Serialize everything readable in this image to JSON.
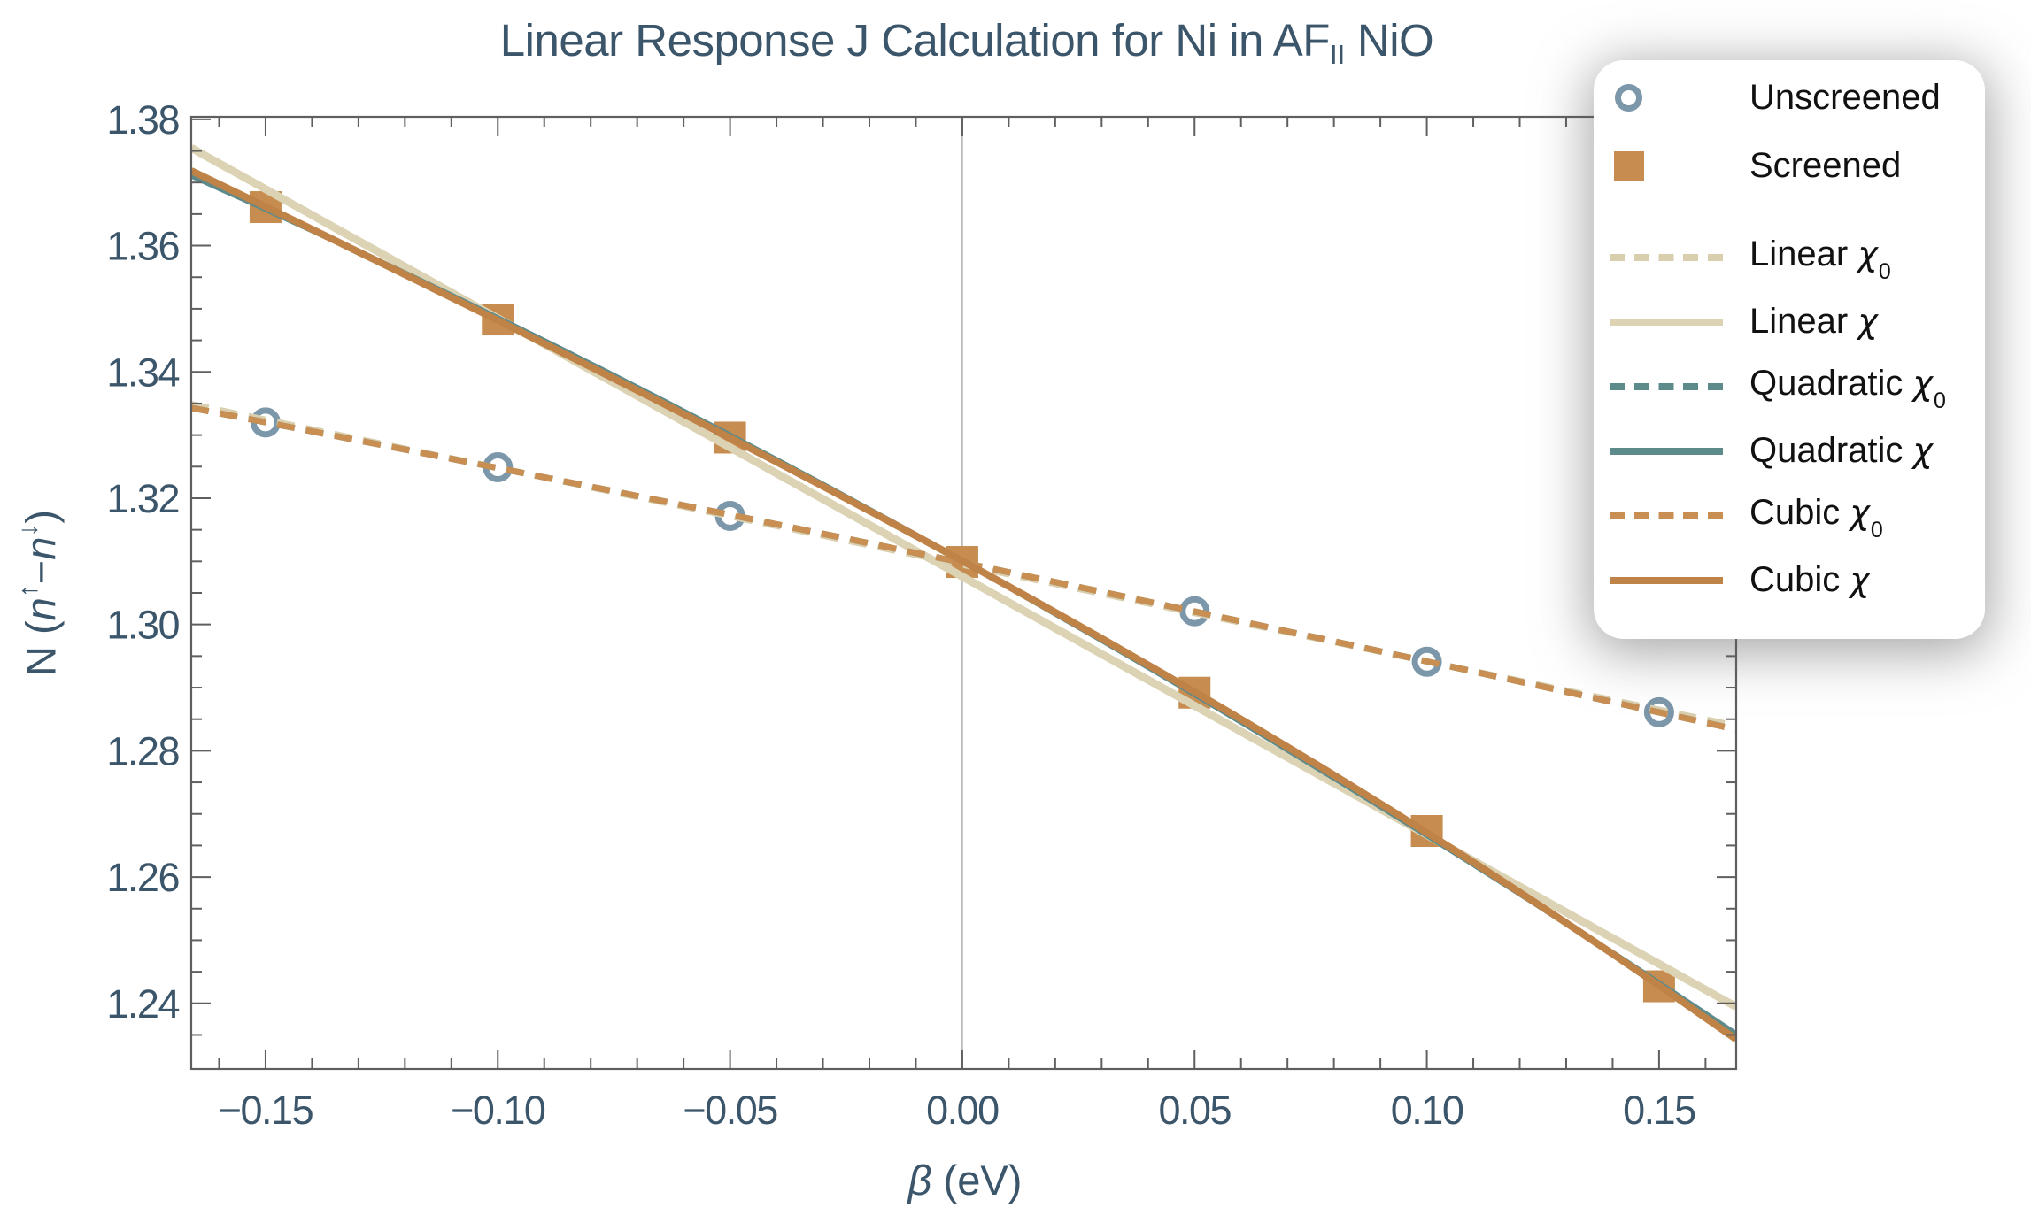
{
  "title": {
    "prefix": "Linear Response J Calculation for Ni in AF",
    "subscript": "II",
    "suffix": " NiO"
  },
  "x_axis": {
    "symbol": "β",
    "unit": " (eV)",
    "min": -0.166,
    "max": 0.1666,
    "tick_values": [
      -0.15,
      -0.1,
      -0.05,
      0.0,
      0.05,
      0.1,
      0.15
    ],
    "tick_labels": [
      "−0.15",
      "−0.10",
      "−0.05",
      "0.00",
      "0.05",
      "0.10",
      "0.15"
    ],
    "minor_step": 0.01,
    "gridline_at": 0
  },
  "y_axis": {
    "label_prefix": "N (",
    "label_n1": "n",
    "label_sup1": "↑",
    "label_minus": "−",
    "label_n2": "n",
    "label_sup2": "↓",
    "label_suffix": ")",
    "min": 1.2296,
    "max": 1.3804,
    "tick_values": [
      1.24,
      1.26,
      1.28,
      1.3,
      1.32,
      1.34,
      1.36,
      1.38
    ],
    "tick_labels": [
      "1.24",
      "1.26",
      "1.28",
      "1.30",
      "1.32",
      "1.34",
      "1.36",
      "1.38"
    ],
    "minor_step": 0.005
  },
  "chart_data": {
    "type": "scatter",
    "title": "Linear Response J Calculation for Ni in AF_II NiO",
    "xlabel": "β (eV)",
    "ylabel": "N (n↑−n↓)",
    "xlim": [
      -0.166,
      0.1666
    ],
    "ylim": [
      1.2296,
      1.3804
    ],
    "grid": "vertical line at x=0 only",
    "legend_position": "top-right, overlapping plot frame",
    "x": [
      -0.15,
      -0.1,
      -0.05,
      0.0,
      0.05,
      0.1,
      0.15
    ],
    "series": [
      {
        "name": "Unscreened",
        "marker": "open-circle",
        "color": "#7d97aa",
        "values": [
          1.332,
          1.3249,
          1.3172,
          1.3099,
          1.3021,
          1.2941,
          1.2861
        ]
      },
      {
        "name": "Screened",
        "marker": "filled-square",
        "color": "#c78c4f",
        "values": [
          1.3661,
          1.3483,
          1.3296,
          1.3099,
          1.2892,
          1.2673,
          1.2427
        ]
      }
    ],
    "fits": [
      {
        "name": "Linear χ0",
        "source": "Unscreened",
        "degree": 1,
        "style": "dashed",
        "color": "#d9cfae"
      },
      {
        "name": "Linear χ",
        "source": "Screened",
        "degree": 1,
        "style": "solid",
        "color": "#dcd2b4"
      },
      {
        "name": "Quadratic χ0",
        "source": "Unscreened",
        "degree": 2,
        "style": "dashed",
        "color": "#5d8b8b"
      },
      {
        "name": "Quadratic χ",
        "source": "Screened",
        "degree": 2,
        "style": "solid",
        "color": "#5d8b8b"
      },
      {
        "name": "Cubic χ0",
        "source": "Unscreened",
        "degree": 3,
        "style": "dashed",
        "color": "#c88e52"
      },
      {
        "name": "Cubic χ",
        "source": "Screened",
        "degree": 3,
        "style": "solid",
        "color": "#bf8347"
      }
    ]
  },
  "legend": {
    "items": [
      {
        "swatch": "circle",
        "color": "#7d97aa",
        "label": "Unscreened",
        "symbol": "",
        "sub": ""
      },
      {
        "swatch": "square",
        "color": "#c78c4f",
        "label": "Screened",
        "symbol": "",
        "sub": ""
      },
      {
        "swatch": "dashed",
        "color": "#d9cfae",
        "label": "Linear ",
        "symbol": "χ",
        "sub": "0"
      },
      {
        "swatch": "solid",
        "color": "#dcd2b4",
        "label": "Linear ",
        "symbol": "χ",
        "sub": ""
      },
      {
        "swatch": "dashed",
        "color": "#5d8b8b",
        "label": "Quadratic ",
        "symbol": "χ",
        "sub": "0"
      },
      {
        "swatch": "solid",
        "color": "#5d8b8b",
        "label": "Quadratic ",
        "symbol": "χ",
        "sub": ""
      },
      {
        "swatch": "dashed",
        "color": "#c88e52",
        "label": "Cubic ",
        "symbol": "χ",
        "sub": "0"
      },
      {
        "swatch": "solid",
        "color": "#bf8347",
        "label": "Cubic ",
        "symbol": "χ",
        "sub": ""
      }
    ]
  },
  "colors": {
    "text": "#3b556a",
    "frame": "#5f5f5f",
    "gridline": "#b5b5b5",
    "legend_text": "#111111",
    "background": "#ffffff"
  }
}
